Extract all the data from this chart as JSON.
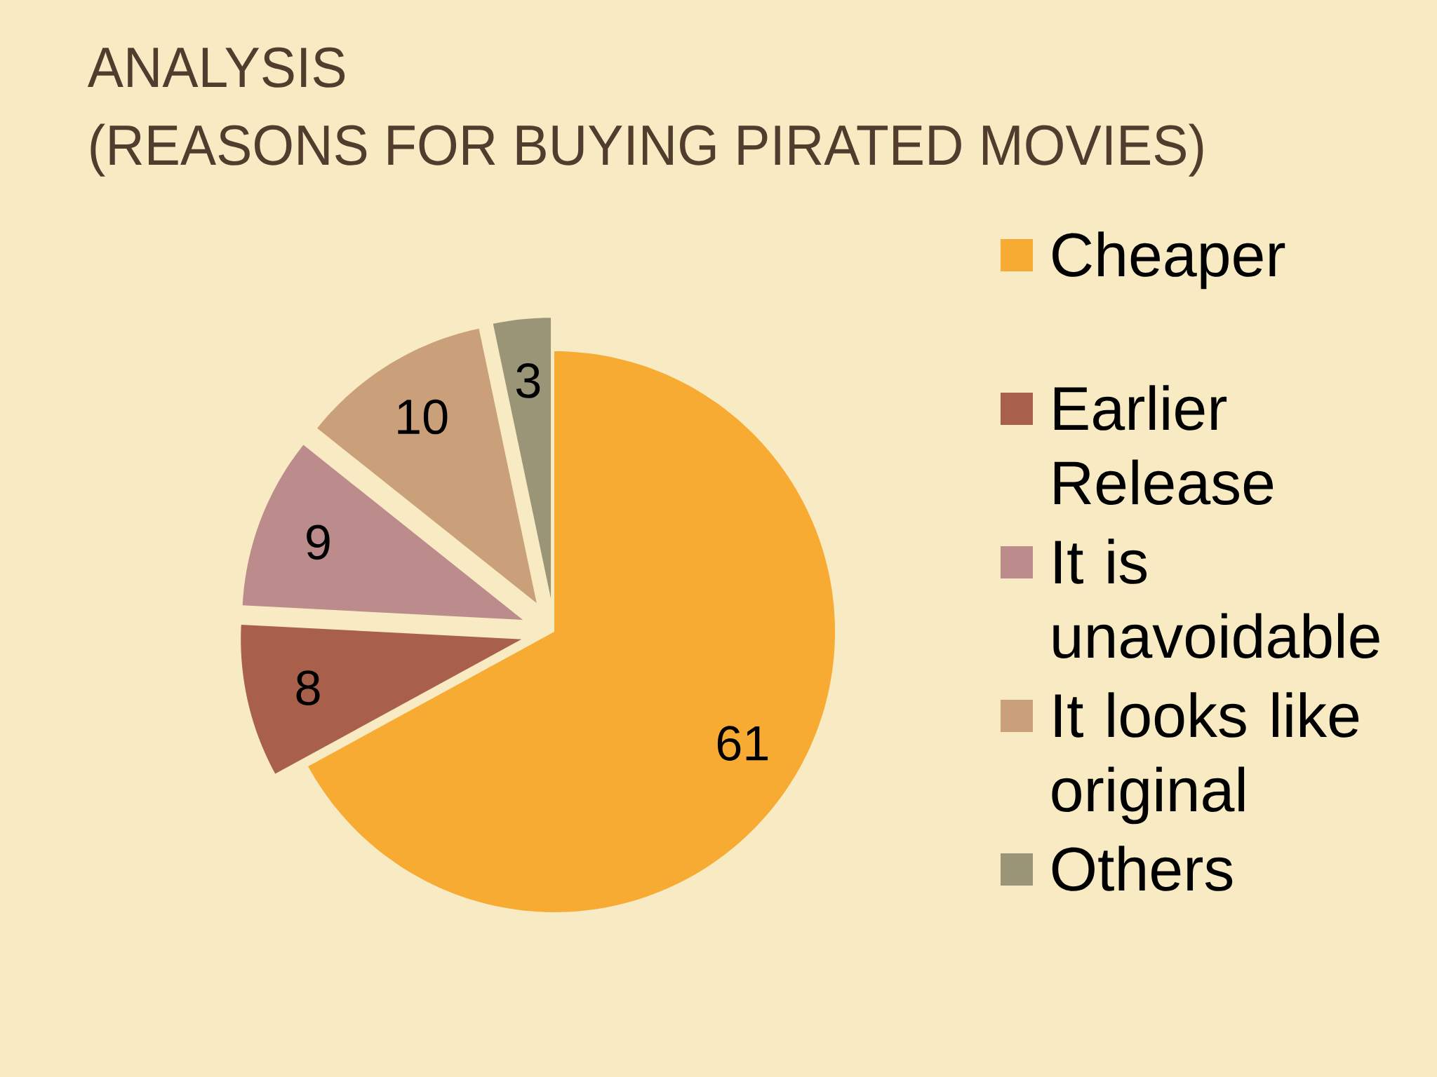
{
  "chart_data": {
    "type": "pie",
    "title": "ANALYSIS",
    "subtitle": "(REASONS FOR BUYING PIRATED MOVIES)",
    "categories": [
      "Cheaper",
      "Earlier Release",
      "It is unavoidable",
      "It looks like original",
      "Others"
    ],
    "values": [
      61,
      8,
      9,
      10,
      3
    ],
    "colors": [
      "#f7ab33",
      "#a8604b",
      "#bb8c8b",
      "#c9a07a",
      "#9b9577"
    ],
    "data_labels": true,
    "legend": "right"
  }
}
